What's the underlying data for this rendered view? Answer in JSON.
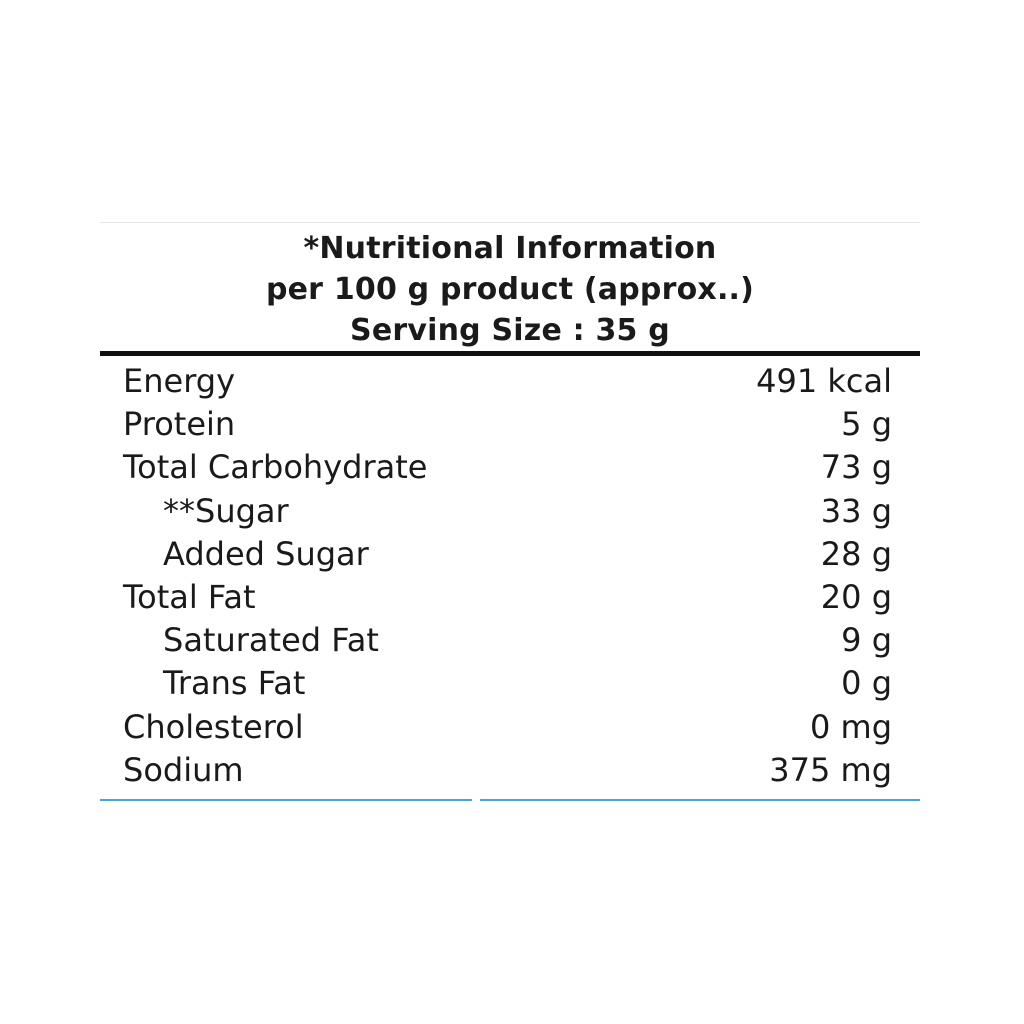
{
  "header": {
    "line1": "*Nutritional Information",
    "line2": "per 100 g product (approx..)",
    "line3": "Serving Size : 35 g"
  },
  "rows": [
    {
      "name": "Energy",
      "value": "491 kcal",
      "indent": false
    },
    {
      "name": "Protein",
      "value": "5 g",
      "indent": false
    },
    {
      "name": "Total Carbohydrate",
      "value": "73 g",
      "indent": false
    },
    {
      "name": "**Sugar",
      "value": "33 g",
      "indent": true
    },
    {
      "name": "Added Sugar",
      "value": "28 g",
      "indent": true
    },
    {
      "name": "Total Fat",
      "value": "20 g",
      "indent": false
    },
    {
      "name": "Saturated Fat",
      "value": "9 g",
      "indent": true
    },
    {
      "name": "Trans Fat",
      "value": "0 g",
      "indent": true
    },
    {
      "name": "Cholesterol",
      "value": "0 mg",
      "indent": false
    },
    {
      "name": "Sodium",
      "value": "375 mg",
      "indent": false
    }
  ],
  "colors": {
    "text": "#1a1a1a",
    "rule": "#111111",
    "bottom_rule": "#4aa3d8"
  }
}
